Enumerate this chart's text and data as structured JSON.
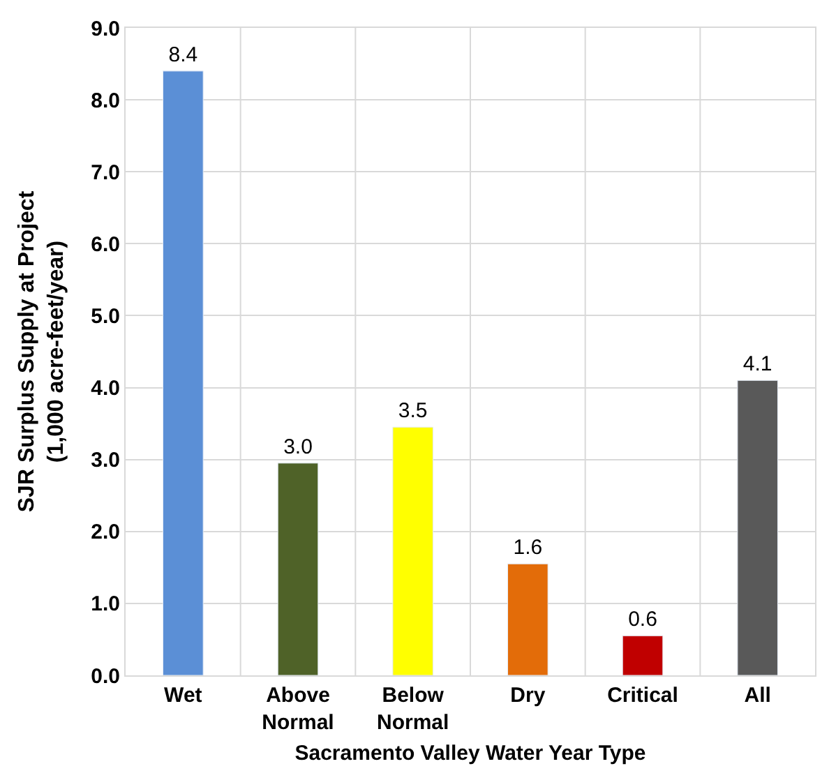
{
  "chart_data": {
    "type": "bar",
    "xlabel": "Sacramento Valley Water Year Type",
    "ylabel": "SJR Surplus Supply at Project\n(1,000 acre-feet/year)",
    "categories": [
      "Wet",
      "Above\nNormal",
      "Below\nNormal",
      "Dry",
      "Critical",
      "All"
    ],
    "values": [
      8.4,
      2.95,
      3.45,
      1.55,
      0.55,
      4.1
    ],
    "value_labels": [
      "8.4",
      "3.0",
      "3.5",
      "1.6",
      "0.6",
      "4.1"
    ],
    "colors": [
      "#5b8fd6",
      "#4f6228",
      "#ffff00",
      "#e36c09",
      "#c00000",
      "#595959"
    ],
    "ylim": [
      0,
      9
    ],
    "yticks": [
      {
        "value": 0,
        "label": "0.0"
      },
      {
        "value": 1,
        "label": "1.0"
      },
      {
        "value": 2,
        "label": "2.0"
      },
      {
        "value": 3,
        "label": "3.0"
      },
      {
        "value": 4,
        "label": "4.0"
      },
      {
        "value": 5,
        "label": "5.0"
      },
      {
        "value": 6,
        "label": "6.0"
      },
      {
        "value": 7,
        "label": "7.0"
      },
      {
        "value": 8,
        "label": "8.0"
      },
      {
        "value": 9,
        "label": "9.0"
      }
    ],
    "grid": true
  }
}
